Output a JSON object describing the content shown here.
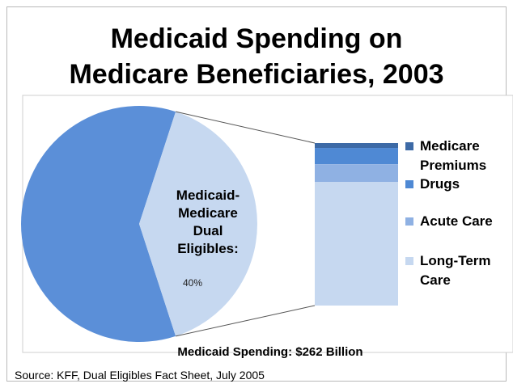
{
  "slide": {
    "title_line1": "Medicaid Spending on",
    "title_line2": "Medicare Beneficiaries, 2003",
    "source": "Source: KFF, Dual Eligibles Fact Sheet, July 2005"
  },
  "chart_data": {
    "type": "bar-of-pie",
    "title": "Medicaid Spending on Medicare Beneficiaries, 2003",
    "xlabel": "Medicaid Spending: $262 Billion",
    "pie": {
      "slices": [
        {
          "label": "",
          "value": 60,
          "color": "#5b8fd8"
        },
        {
          "label": "Medicaid-Medicare Dual Eligibles:",
          "value": 40,
          "value_label": "40%",
          "color": "#c6d8f0"
        }
      ]
    },
    "stacked_bar": {
      "segments": [
        {
          "label": "Medicare Premiums",
          "value": 3,
          "color": "#3d6aa6"
        },
        {
          "label": "Drugs",
          "value": 10,
          "color": "#4f89d4"
        },
        {
          "label": "Acute Care",
          "value": 11,
          "color": "#8fb1e3"
        },
        {
          "label": "Long-Term Care",
          "value": 76,
          "color": "#c6d8f0"
        }
      ]
    },
    "legend_position": "right"
  }
}
